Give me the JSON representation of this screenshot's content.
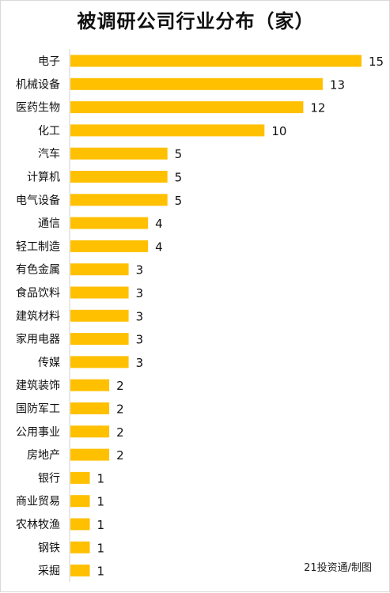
{
  "chart_data": {
    "type": "bar",
    "orientation": "horizontal",
    "title": "被调研公司行业分布（家）",
    "categories": [
      "电子",
      "机械设备",
      "医药生物",
      "化工",
      "汽车",
      "计算机",
      "电气设备",
      "通信",
      "轻工制造",
      "有色金属",
      "食品饮料",
      "建筑材料",
      "家用电器",
      "传媒",
      "建筑装饰",
      "国防军工",
      "公用事业",
      "房地产",
      "银行",
      "商业贸易",
      "农林牧渔",
      "钢铁",
      "采掘"
    ],
    "values": [
      15,
      13,
      12,
      10,
      5,
      5,
      5,
      4,
      4,
      3,
      3,
      3,
      3,
      3,
      2,
      2,
      2,
      2,
      1,
      1,
      1,
      1,
      1
    ],
    "xlim": [
      0,
      15
    ],
    "grid": false,
    "legend": "none",
    "bar_color": "#ffc000"
  },
  "credit": "21投资通/制图"
}
